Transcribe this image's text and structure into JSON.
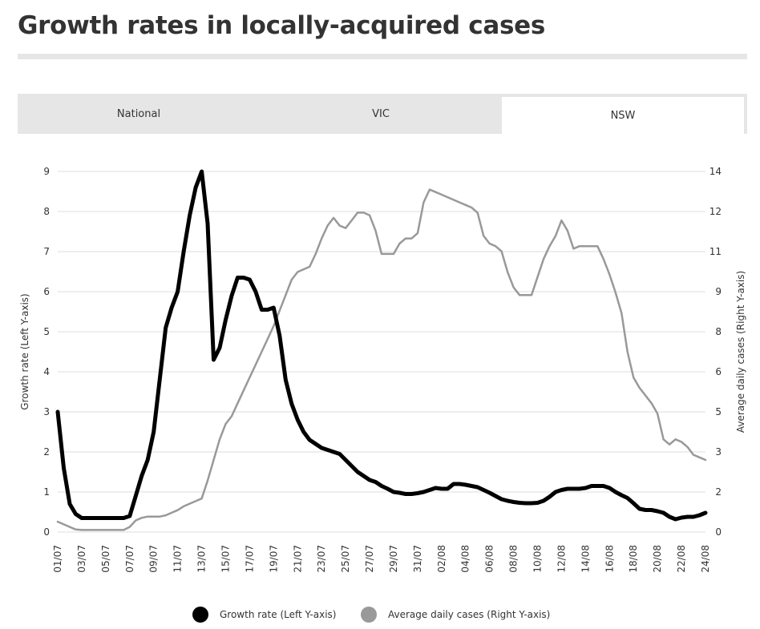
{
  "title": "Growth rates in locally-acquired cases",
  "tabs": [
    {
      "label": "National",
      "active": false
    },
    {
      "label": "VIC",
      "active": false
    },
    {
      "label": "NSW",
      "active": true
    }
  ],
  "legend": [
    {
      "label": "Growth rate (Left Y-axis)",
      "color": "#000000"
    },
    {
      "label": "Average daily cases (Right Y-axis)",
      "color": "#999999"
    }
  ],
  "chart_data": {
    "type": "line",
    "title": "Growth rates in locally-acquired cases",
    "ylabel_left": "Growth rate (Left Y-axis)",
    "ylabel_right": "Average daily cases (Right Y-axis)",
    "left_ticks": [
      "0",
      "1",
      "2",
      "3",
      "4",
      "5",
      "6",
      "7",
      "8",
      "9"
    ],
    "right_ticks": [
      "0",
      "2",
      "3",
      "5",
      "6",
      "8",
      "9",
      "11",
      "12",
      "14"
    ],
    "ylim_left": [
      0,
      9
    ],
    "ylim_right": [
      0,
      14
    ],
    "x_tick_labels": [
      "01/07",
      "03/07",
      "05/07",
      "07/07",
      "09/07",
      "11/07",
      "13/07",
      "15/07",
      "17/07",
      "19/07",
      "21/07",
      "23/07",
      "25/07",
      "27/07",
      "29/07",
      "31/07",
      "02/08",
      "04/08",
      "06/08",
      "08/08",
      "10/08",
      "12/08",
      "14/08",
      "16/08",
      "18/08",
      "20/08",
      "22/08",
      "24/08"
    ],
    "x_day_start": 1,
    "x_day_end": 55,
    "series": [
      {
        "name": "Growth rate (Left Y-axis)",
        "axis": "left",
        "color": "#000000",
        "x": [
          1,
          1.5,
          2,
          2.5,
          3,
          3.5,
          4,
          4.5,
          5,
          5.5,
          6,
          6.5,
          7,
          7.5,
          8,
          8.5,
          9,
          9.5,
          10,
          10.5,
          11,
          11.5,
          12,
          12.5,
          13,
          13.5,
          14,
          14.5,
          15,
          15.5,
          16,
          16.5,
          17,
          17.5,
          18,
          18.5,
          19,
          19.5,
          20,
          20.5,
          21,
          21.5,
          22,
          22.5,
          23,
          23.5,
          24,
          24.5,
          25,
          25.5,
          26,
          26.5,
          27,
          27.5,
          28,
          28.5,
          29,
          29.5,
          30,
          30.5,
          31,
          31.5,
          32,
          32.5,
          33,
          33.5,
          34,
          34.5,
          35,
          35.5,
          36,
          36.5,
          37,
          37.5,
          38,
          38.5,
          39,
          39.5,
          40,
          40.5,
          41,
          41.5,
          42,
          42.5,
          43,
          43.5,
          44,
          44.5,
          45,
          45.5,
          46,
          46.5,
          47,
          47.5,
          48,
          48.5,
          49,
          49.5,
          50,
          50.5,
          51,
          51.5,
          52,
          52.5,
          53,
          53.5,
          54,
          54.5,
          55
        ],
        "values": [
          3.0,
          1.6,
          0.7,
          0.45,
          0.35,
          0.35,
          0.35,
          0.35,
          0.35,
          0.35,
          0.35,
          0.35,
          0.4,
          0.9,
          1.4,
          1.8,
          2.5,
          3.8,
          5.1,
          5.6,
          6.0,
          7.0,
          7.9,
          8.6,
          9.0,
          7.7,
          4.3,
          4.6,
          5.3,
          5.9,
          6.35,
          6.35,
          6.3,
          6.0,
          5.55,
          5.55,
          5.6,
          4.9,
          3.8,
          3.2,
          2.8,
          2.5,
          2.3,
          2.2,
          2.1,
          2.05,
          2.0,
          1.95,
          1.8,
          1.65,
          1.5,
          1.4,
          1.3,
          1.25,
          1.15,
          1.08,
          1.0,
          0.98,
          0.95,
          0.95,
          0.97,
          1.0,
          1.05,
          1.1,
          1.08,
          1.08,
          1.2,
          1.2,
          1.18,
          1.15,
          1.12,
          1.05,
          0.98,
          0.9,
          0.82,
          0.78,
          0.75,
          0.73,
          0.72,
          0.72,
          0.73,
          0.78,
          0.88,
          1.0,
          1.05,
          1.08,
          1.08,
          1.08,
          1.1,
          1.15,
          1.15,
          1.15,
          1.1,
          1.0,
          0.92,
          0.85,
          0.72,
          0.58,
          0.55,
          0.55,
          0.52,
          0.48,
          0.38,
          0.32,
          0.36,
          0.38,
          0.38,
          0.42,
          0.48
        ]
      },
      {
        "name": "Average daily cases (Right Y-axis)",
        "axis": "right",
        "color": "#999999",
        "x": [
          1,
          1.5,
          2,
          2.5,
          3,
          3.5,
          4,
          4.5,
          5,
          5.5,
          6,
          6.5,
          7,
          7.5,
          8,
          8.5,
          9,
          9.5,
          10,
          10.5,
          11,
          11.5,
          12,
          12.5,
          13,
          13.5,
          14,
          14.5,
          15,
          15.5,
          16,
          16.5,
          17,
          17.5,
          18,
          18.5,
          19,
          19.5,
          20,
          20.5,
          21,
          21.5,
          22,
          22.5,
          23,
          23.5,
          24,
          24.5,
          25,
          25.5,
          26,
          26.5,
          27,
          27.5,
          28,
          28.5,
          29,
          29.5,
          30,
          30.5,
          31,
          31.5,
          32,
          32.5,
          33,
          33.5,
          34,
          34.5,
          35,
          35.5,
          36,
          36.5,
          37,
          37.5,
          38,
          38.5,
          39,
          39.5,
          40,
          40.5,
          41,
          41.5,
          42,
          42.5,
          43,
          43.5,
          44,
          44.5,
          45,
          45.5,
          46,
          46.5,
          47,
          47.5,
          48,
          48.5,
          49,
          49.5,
          50,
          50.5,
          51,
          51.5,
          52,
          52.5,
          53,
          53.5,
          54,
          54.5,
          55
        ],
        "values": [
          0.4,
          0.3,
          0.2,
          0.1,
          0.08,
          0.08,
          0.08,
          0.08,
          0.08,
          0.08,
          0.08,
          0.08,
          0.2,
          0.45,
          0.55,
          0.6,
          0.6,
          0.6,
          0.65,
          0.75,
          0.85,
          1.0,
          1.1,
          1.2,
          1.3,
          2.0,
          2.8,
          3.6,
          4.2,
          4.5,
          5.0,
          5.5,
          6.0,
          6.5,
          7.0,
          7.5,
          8.0,
          8.6,
          9.2,
          9.8,
          10.1,
          10.2,
          10.3,
          10.8,
          11.4,
          11.9,
          12.2,
          11.9,
          11.8,
          12.1,
          12.4,
          12.4,
          12.3,
          11.7,
          10.8,
          10.8,
          10.8,
          11.2,
          11.4,
          11.4,
          11.6,
          12.8,
          13.3,
          13.2,
          13.1,
          13.0,
          12.9,
          12.8,
          12.7,
          12.6,
          12.4,
          11.5,
          11.2,
          11.1,
          10.9,
          10.1,
          9.5,
          9.2,
          9.2,
          9.2,
          9.9,
          10.6,
          11.1,
          11.5,
          12.1,
          11.7,
          11.0,
          11.1,
          11.1,
          11.1,
          11.1,
          10.6,
          10.0,
          9.3,
          8.5,
          7.0,
          6.0,
          5.6,
          5.3,
          5.0,
          4.6,
          3.6,
          3.4,
          3.6,
          3.5,
          3.3,
          3.0,
          2.9,
          2.8
        ]
      }
    ]
  }
}
